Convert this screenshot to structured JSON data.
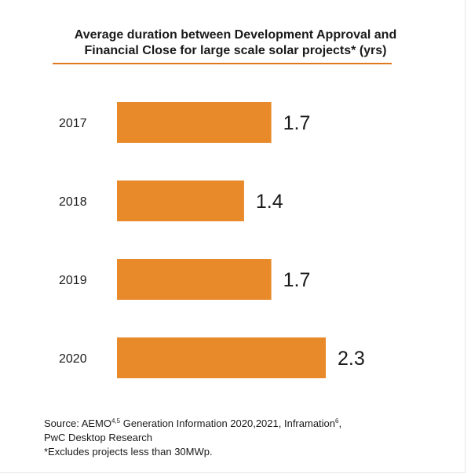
{
  "title": {
    "line1": "Average duration between Development Approval and",
    "line2": "Financial Close for large scale solar projects* (yrs)"
  },
  "colors": {
    "bar": "#e8892a",
    "rule": "#e0781e",
    "text": "#1a1a1a"
  },
  "chart_data": {
    "type": "bar",
    "orientation": "horizontal",
    "title": "Average duration between Development Approval and Financial Close for large scale solar projects* (yrs)",
    "categories": [
      "2017",
      "2018",
      "2019",
      "2020"
    ],
    "values": [
      1.7,
      1.4,
      1.7,
      2.3
    ],
    "data_labels": [
      "1.7",
      "1.4",
      "1.7",
      "2.3"
    ],
    "xlim": [
      0,
      2.3
    ],
    "xlabel": "",
    "ylabel": "",
    "grid": false,
    "legend": "none"
  },
  "source": {
    "prefix": "Source: AEMO",
    "sup1": "4,5",
    "middle": " Generation Information 2020,2021, Inframation",
    "sup2": "6",
    "suffix": ",",
    "line2": "PwC Desktop Research",
    "footnote": "*Excludes projects less than 30MWp."
  }
}
